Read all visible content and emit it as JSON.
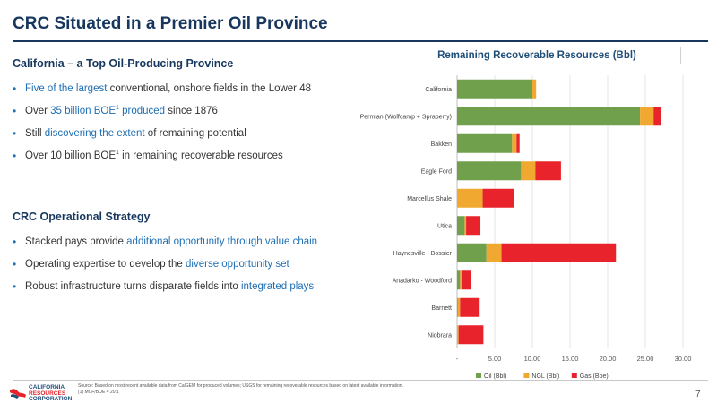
{
  "page": {
    "title": "CRC Situated in a Premier Oil Province",
    "page_number": "7"
  },
  "left": {
    "section1_heading": "California – a Top Oil-Producing Province",
    "section1_bullets": [
      {
        "highlight": "Five of the largest",
        "rest": " conventional, onshore fields in the Lower 48"
      },
      {
        "pre": "Over ",
        "highlight": "35 billion BOE",
        "sup": "1",
        "highlight2": " produced",
        "rest": " since 1876"
      },
      {
        "pre": "Still ",
        "highlight": "discovering the extent",
        "rest": " of remaining potential"
      },
      {
        "pre": "Over 10 billion BOE",
        "sup": "1",
        "rest": " in remaining recoverable resources"
      }
    ],
    "section2_heading": "CRC Operational Strategy",
    "section2_bullets": [
      {
        "pre": "Stacked pays provide ",
        "highlight": "additional opportunity through value chain"
      },
      {
        "pre": "Operating expertise to develop the ",
        "highlight": "diverse opportunity set"
      },
      {
        "pre": "Robust infrastructure turns disparate fields into ",
        "highlight": "integrated plays"
      }
    ]
  },
  "chart_data": {
    "type": "bar",
    "orientation": "horizontal",
    "stacked": true,
    "title": "Remaining Recoverable Resources (Bbl)",
    "categories": [
      "California",
      "Permian (Wolfcamp + Spraberry)",
      "Bakken",
      "Eagle Ford",
      "Marcellus Shale",
      "Utica",
      "Haynesville - Bossier",
      "Anadarko - Woodford",
      "Barnett",
      "Niobrara"
    ],
    "series": [
      {
        "name": "Oil (Bbl)",
        "color": "#70a04c",
        "values": [
          10.0,
          24.3,
          7.3,
          8.5,
          0,
          1.0,
          3.9,
          0.4,
          0.1,
          0
        ]
      },
      {
        "name": "NGL (Bbl)",
        "color": "#f0a830",
        "values": [
          0.5,
          1.8,
          0.6,
          1.9,
          3.4,
          0.2,
          2.0,
          0.2,
          0.3,
          0.2
        ]
      },
      {
        "name": "Gas (Boe)",
        "color": "#e8232b",
        "values": [
          0,
          1.0,
          0.4,
          3.4,
          4.1,
          1.9,
          15.2,
          1.3,
          2.6,
          3.3
        ]
      }
    ],
    "xlim": [
      0,
      30
    ],
    "xticks": [
      "-",
      "5.00",
      "10.00",
      "15.00",
      "20.00",
      "25.00",
      "30.00"
    ],
    "xtick_values": [
      0,
      5,
      10,
      15,
      20,
      25,
      30
    ],
    "grid": true,
    "legend_position": "bottom"
  },
  "footer": {
    "logo_line1": "CALIFORNIA",
    "logo_line2": "RESOURCES",
    "logo_line3": "CORPORATION",
    "source_line1": "Source: Based on most recent available data from CalGEM for produced volumes; USGS for remaining recoverable resources based on latest available information.",
    "source_line2": "(1) MCF/BOE = 20:1"
  },
  "colors": {
    "title": "#17375e",
    "accent": "#1f6fb5"
  }
}
